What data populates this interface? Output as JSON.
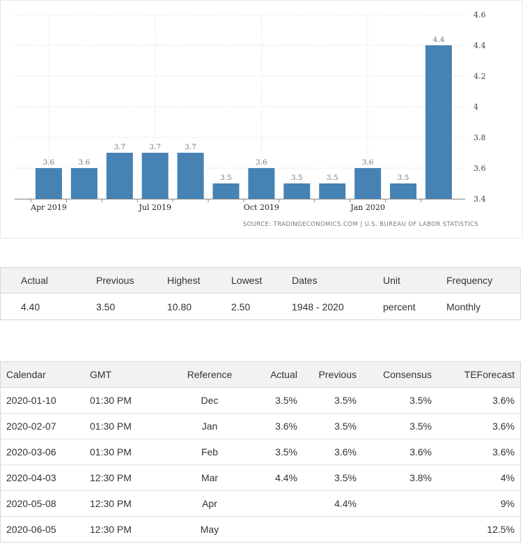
{
  "chart_data": {
    "type": "bar",
    "categories": [
      "Apr 2019",
      "May 2019",
      "Jun 2019",
      "Jul 2019",
      "Aug 2019",
      "Sep 2019",
      "Oct 2019",
      "Nov 2019",
      "Dec 2019",
      "Jan 2020",
      "Feb 2020",
      "Mar 2020"
    ],
    "values": [
      3.6,
      3.6,
      3.7,
      3.7,
      3.7,
      3.5,
      3.6,
      3.5,
      3.5,
      3.6,
      3.5,
      4.4
    ],
    "data_labels": [
      "3.6",
      "3.6",
      "3.7",
      "3.7",
      "3.7",
      "3.5",
      "3.6",
      "3.5",
      "3.5",
      "3.6",
      "3.5",
      "4.4"
    ],
    "x_tick_labels": [
      "Apr 2019",
      "Jul 2019",
      "Oct 2019",
      "Jan 2020"
    ],
    "y_ticks": [
      "3.4",
      "3.6",
      "3.8",
      "4",
      "4.2",
      "4.4",
      "4.6"
    ],
    "ylim": [
      3.4,
      4.6
    ],
    "grid": true,
    "bar_color": "#4682b4",
    "source": "SOURCE: TRADINGECONOMICS.COM  |  U.S. BUREAU OF LABOR STATISTICS"
  },
  "summary": {
    "headers": [
      "Actual",
      "Previous",
      "Highest",
      "Lowest",
      "Dates",
      "Unit",
      "Frequency"
    ],
    "values": [
      "4.40",
      "3.50",
      "10.80",
      "2.50",
      "1948 - 2020",
      "percent",
      "Monthly"
    ]
  },
  "calendar": {
    "headers": [
      "Calendar",
      "GMT",
      "Reference",
      "Actual",
      "Previous",
      "Consensus",
      "TEForecast"
    ],
    "rows": [
      [
        "2020-01-10",
        "01:30 PM",
        "Dec",
        "3.5%",
        "3.5%",
        "3.5%",
        "3.6%"
      ],
      [
        "2020-02-07",
        "01:30 PM",
        "Jan",
        "3.6%",
        "3.5%",
        "3.5%",
        "3.6%"
      ],
      [
        "2020-03-06",
        "01:30 PM",
        "Feb",
        "3.5%",
        "3.6%",
        "3.6%",
        "3.6%"
      ],
      [
        "2020-04-03",
        "12:30 PM",
        "Mar",
        "4.4%",
        "3.5%",
        "3.8%",
        "4%"
      ],
      [
        "2020-05-08",
        "12:30 PM",
        "Apr",
        "",
        "4.4%",
        "",
        "9%"
      ],
      [
        "2020-06-05",
        "12:30 PM",
        "May",
        "",
        "",
        "",
        "12.5%"
      ]
    ]
  }
}
